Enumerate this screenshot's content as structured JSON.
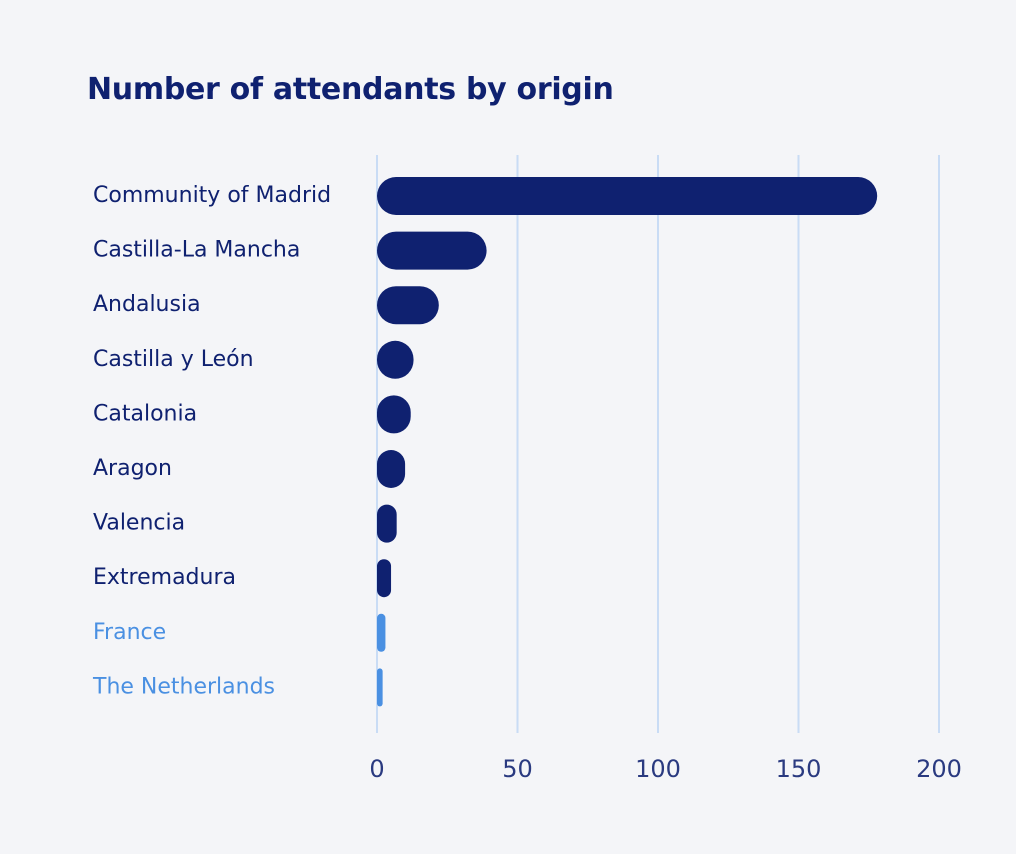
{
  "chart_data": {
    "type": "bar",
    "orientation": "horizontal",
    "title": "Number of attendants by origin",
    "xlabel": "",
    "ylabel": "",
    "xlim": [
      0,
      200
    ],
    "ticks": [
      "0",
      "50",
      "100",
      "150",
      "200"
    ],
    "tick_values": [
      0,
      50,
      100,
      150,
      200
    ],
    "grid": "vertical",
    "categories": [
      "Community of Madrid",
      "Castilla-La Mancha",
      "Andalusia",
      "Castilla y León",
      "Catalonia",
      "Aragon",
      "Valencia",
      "Extremadura",
      "France",
      "The Netherlands"
    ],
    "values": [
      178,
      39,
      22,
      13,
      12,
      10,
      7,
      5,
      3,
      2
    ],
    "groups": [
      "spain",
      "spain",
      "spain",
      "spain",
      "spain",
      "spain",
      "spain",
      "spain",
      "foreign",
      "foreign"
    ],
    "colors": {
      "spain": "#0f2170",
      "foreign": "#4a90e2",
      "grid": "#c9dcf5",
      "title": "#0f2170",
      "tick": "#2a3a80"
    }
  }
}
